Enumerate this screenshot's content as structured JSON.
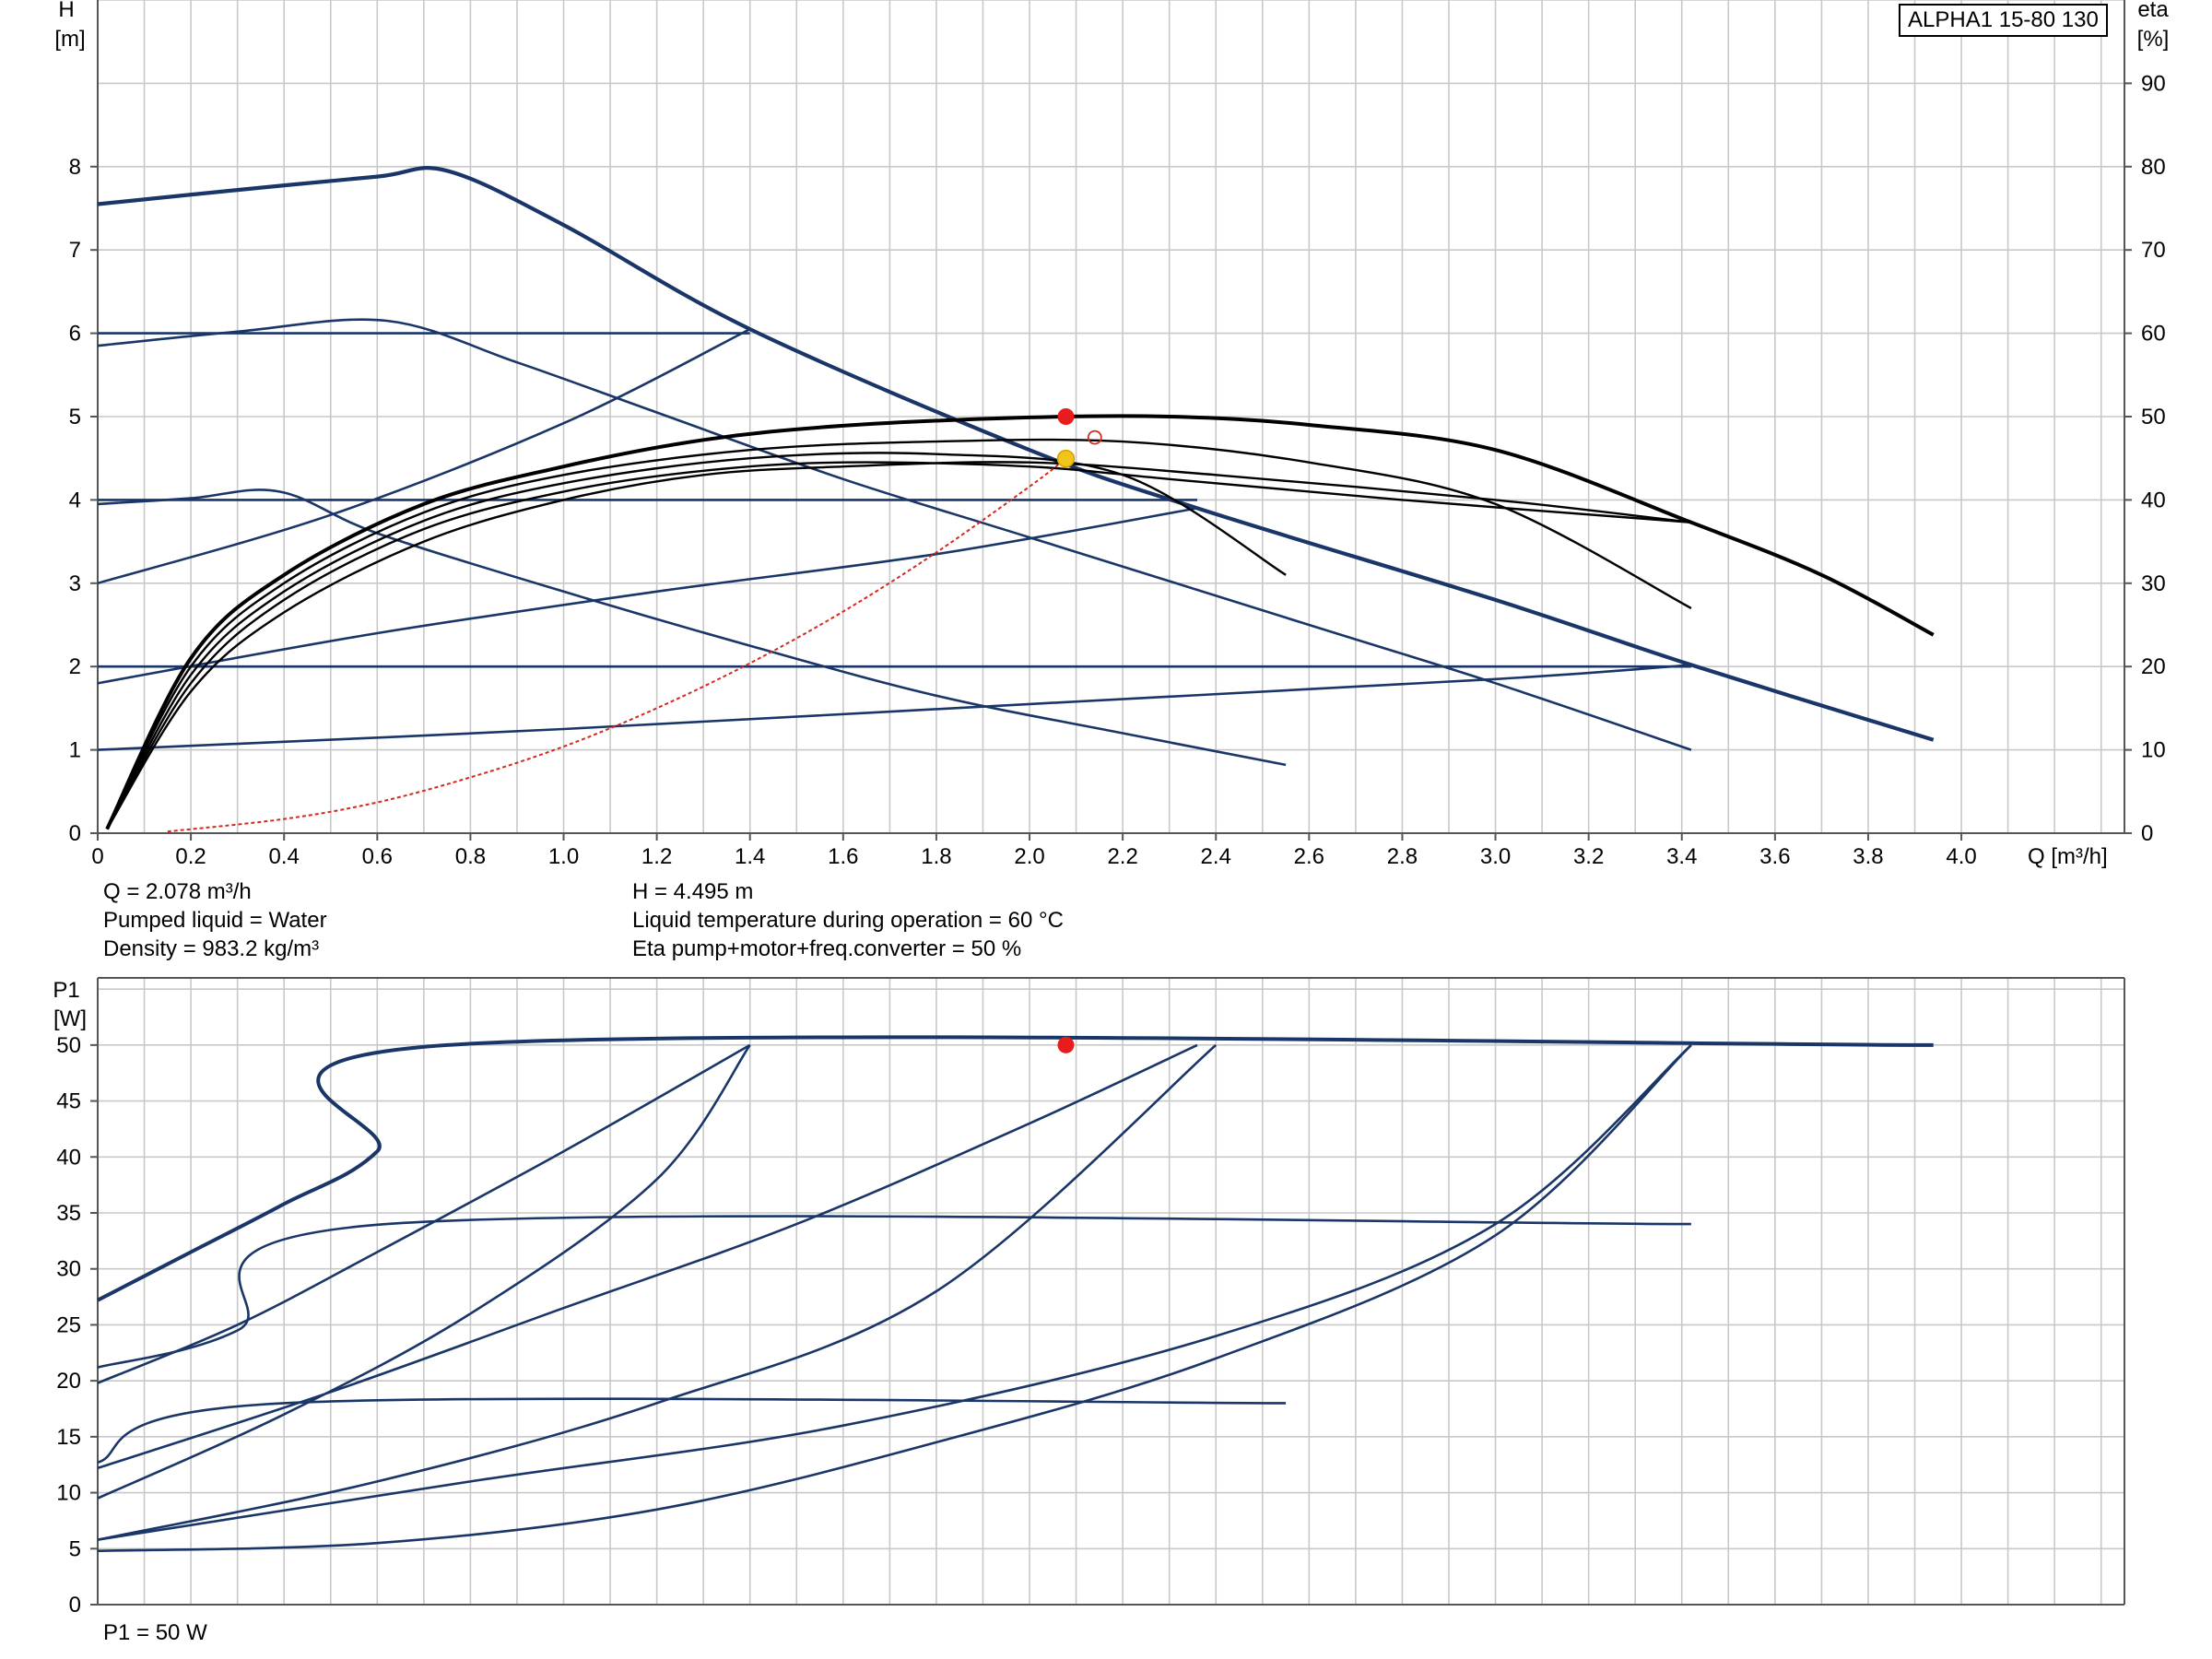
{
  "model_label": "ALPHA1 15-80 130",
  "colors": {
    "pump_curve": "#1a3668",
    "efficiency_curve": "#000000",
    "system_curve": "#d42a1e",
    "duty_point": "#e81c1c",
    "efficiency_point": "#f0c419",
    "grid": "#c8c8c8"
  },
  "info": {
    "q": "Q = 2.078 m³/h",
    "h": "H = 4.495 m",
    "liquid": "Pumped liquid = Water",
    "temperature": "Liquid temperature during operation = 60 °C",
    "density": "Density = 983.2 kg/m³",
    "eta": "Eta pump+motor+freq.converter = 50 %",
    "p1": "P1 = 50 W"
  },
  "chart_data": [
    {
      "type": "line",
      "x_label": "Q [m³/h]",
      "y_label_line1": "H",
      "y_label_line2": "[m]",
      "y2_label_line1": "eta",
      "y2_label_line2": "[%]",
      "xlim": [
        0,
        4.35
      ],
      "ylim": [
        0,
        10
      ],
      "y2lim": [
        0,
        100
      ],
      "x_ticks": [
        "0",
        "0.2",
        "0.4",
        "0.6",
        "0.8",
        "1.0",
        "1.2",
        "1.4",
        "1.6",
        "1.8",
        "2.0",
        "2.2",
        "2.4",
        "2.6",
        "2.8",
        "3.0",
        "3.2",
        "3.4",
        "3.6",
        "3.8",
        "4.0"
      ],
      "y_ticks": [
        "0",
        "1",
        "2",
        "3",
        "4",
        "5",
        "6",
        "7",
        "8"
      ],
      "y2_ticks": [
        "0",
        "10",
        "20",
        "30",
        "40",
        "50",
        "60",
        "70",
        "80",
        "90"
      ],
      "grid": true,
      "head_curves": [
        [
          [
            0,
            7.55
          ],
          [
            0.3,
            7.72
          ],
          [
            0.6,
            7.88
          ],
          [
            0.75,
            7.95
          ],
          [
            1.0,
            7.3
          ],
          [
            1.4,
            6.05
          ],
          [
            2.0,
            4.6
          ],
          [
            2.36,
            3.9
          ],
          [
            3.0,
            2.8
          ],
          [
            3.42,
            2.02
          ],
          [
            3.94,
            1.12
          ]
        ],
        [
          [
            0,
            5.85
          ],
          [
            0.3,
            6.02
          ],
          [
            0.62,
            6.15
          ],
          [
            0.9,
            5.65
          ],
          [
            1.2,
            5.05
          ],
          [
            1.6,
            4.25
          ],
          [
            2.0,
            3.55
          ],
          [
            2.6,
            2.5
          ],
          [
            3.0,
            1.8
          ],
          [
            3.42,
            1.0
          ]
        ],
        [
          [
            0,
            3.95
          ],
          [
            0.2,
            4.02
          ],
          [
            0.39,
            4.1
          ],
          [
            0.6,
            3.6
          ],
          [
            1.0,
            2.9
          ],
          [
            1.4,
            2.25
          ],
          [
            1.8,
            1.65
          ],
          [
            2.2,
            1.2
          ],
          [
            2.55,
            0.82
          ]
        ],
        [
          [
            0,
            6.0
          ],
          [
            1.4,
            6.0
          ]
        ],
        [
          [
            0,
            3.0
          ],
          [
            0.5,
            3.82
          ],
          [
            1.0,
            4.92
          ],
          [
            1.4,
            6.05
          ]
        ],
        [
          [
            0,
            4.0
          ],
          [
            2.36,
            4.0
          ]
        ],
        [
          [
            0,
            1.8
          ],
          [
            0.6,
            2.4
          ],
          [
            1.2,
            2.9
          ],
          [
            1.8,
            3.35
          ],
          [
            2.36,
            3.9
          ]
        ],
        [
          [
            0,
            2.0
          ],
          [
            3.42,
            2.0
          ]
        ],
        [
          [
            0,
            1.0
          ],
          [
            1.0,
            1.25
          ],
          [
            2.0,
            1.55
          ],
          [
            3.0,
            1.85
          ],
          [
            3.42,
            2.02
          ]
        ]
      ],
      "efficiency_curves": [
        [
          [
            0.02,
            0.5
          ],
          [
            0.2,
            21
          ],
          [
            0.4,
            31
          ],
          [
            0.7,
            39.5
          ],
          [
            1.0,
            44
          ],
          [
            1.3,
            47.2
          ],
          [
            1.6,
            48.9
          ],
          [
            2.0,
            49.9
          ],
          [
            2.3,
            50
          ],
          [
            2.6,
            49
          ],
          [
            3.0,
            46
          ],
          [
            3.42,
            37.3
          ],
          [
            3.7,
            31
          ],
          [
            3.94,
            23.8
          ]
        ],
        [
          [
            0.02,
            0.5
          ],
          [
            0.2,
            20
          ],
          [
            0.4,
            30
          ],
          [
            0.7,
            38.5
          ],
          [
            1.0,
            43
          ],
          [
            1.4,
            46
          ],
          [
            1.8,
            47
          ],
          [
            2.2,
            47
          ],
          [
            2.6,
            44.5
          ],
          [
            3.0,
            39.5
          ],
          [
            3.42,
            27
          ]
        ],
        [
          [
            0.02,
            0.5
          ],
          [
            0.2,
            19
          ],
          [
            0.4,
            29
          ],
          [
            0.7,
            37.5
          ],
          [
            1.0,
            42
          ],
          [
            1.4,
            45
          ],
          [
            1.8,
            45.5
          ],
          [
            2.2,
            43
          ],
          [
            2.55,
            31
          ]
        ],
        [
          [
            0.02,
            0.5
          ],
          [
            0.2,
            18
          ],
          [
            0.4,
            28
          ],
          [
            0.7,
            36.5
          ],
          [
            1.0,
            41
          ],
          [
            1.3,
            43.5
          ],
          [
            1.6,
            44.5
          ],
          [
            2.0,
            44
          ],
          [
            2.3,
            42.5
          ],
          [
            2.8,
            40
          ],
          [
            3.42,
            37.3
          ]
        ],
        [
          [
            0.02,
            0.5
          ],
          [
            0.2,
            17
          ],
          [
            0.4,
            26.5
          ],
          [
            0.7,
            35
          ],
          [
            1.0,
            40
          ],
          [
            1.3,
            43
          ],
          [
            1.6,
            44
          ],
          [
            2.0,
            44.5
          ],
          [
            2.4,
            43
          ],
          [
            3.0,
            40
          ],
          [
            3.42,
            37.3
          ]
        ]
      ],
      "system_curve": [
        [
          0.15,
          0.02
        ],
        [
          0.4,
          0.17
        ],
        [
          0.6,
          0.37
        ],
        [
          0.8,
          0.67
        ],
        [
          1.0,
          1.04
        ],
        [
          1.2,
          1.5
        ],
        [
          1.4,
          2.04
        ],
        [
          1.6,
          2.66
        ],
        [
          1.8,
          3.37
        ],
        [
          2.0,
          4.16
        ],
        [
          2.078,
          4.495
        ]
      ],
      "duty_point": {
        "q": 2.078,
        "h": 4.495
      },
      "efficiency_point": {
        "q": 2.078,
        "eta": 50
      },
      "marker_o": {
        "q": 2.14,
        "h": 4.75
      }
    },
    {
      "type": "line",
      "x_label": "",
      "y_label_line1": "P1",
      "y_label_line2": "[W]",
      "xlim": [
        0,
        4.35
      ],
      "ylim": [
        0,
        56
      ],
      "y_ticks": [
        "0",
        "5",
        "10",
        "15",
        "20",
        "25",
        "30",
        "35",
        "40",
        "45",
        "50"
      ],
      "grid": true,
      "power_curves": [
        [
          [
            0,
            27.2
          ],
          [
            0.2,
            31.5
          ],
          [
            0.4,
            35.8
          ],
          [
            0.6,
            40.5
          ],
          [
            0.75,
            50
          ],
          [
            3.94,
            50
          ]
        ],
        [
          [
            0,
            19.8
          ],
          [
            0.3,
            25
          ],
          [
            0.6,
            31.5
          ],
          [
            1.0,
            40.5
          ],
          [
            1.4,
            50
          ]
        ],
        [
          [
            0,
            21.2
          ],
          [
            0.3,
            24.5
          ],
          [
            0.62,
            34
          ],
          [
            3.42,
            34
          ]
        ],
        [
          [
            0,
            12.7
          ],
          [
            0.4,
            18
          ],
          [
            2.55,
            18
          ]
        ],
        [
          [
            0,
            9.5
          ],
          [
            0.4,
            17
          ],
          [
            0.8,
            26
          ],
          [
            1.2,
            38
          ],
          [
            1.4,
            50
          ]
        ],
        [
          [
            0,
            12.2
          ],
          [
            0.5,
            19
          ],
          [
            1.0,
            26.5
          ],
          [
            1.5,
            34
          ],
          [
            2.0,
            43
          ],
          [
            2.36,
            50
          ]
        ],
        [
          [
            0,
            5.8
          ],
          [
            0.6,
            11
          ],
          [
            1.2,
            18
          ],
          [
            1.8,
            28
          ],
          [
            2.4,
            50
          ]
        ],
        [
          [
            0,
            5.8
          ],
          [
            0.8,
            11
          ],
          [
            1.6,
            16
          ],
          [
            2.4,
            24
          ],
          [
            3.0,
            34
          ],
          [
            3.42,
            50
          ]
        ],
        [
          [
            0,
            4.8
          ],
          [
            0.6,
            5.5
          ],
          [
            1.2,
            8.5
          ],
          [
            1.8,
            14.5
          ],
          [
            2.4,
            22
          ],
          [
            3.0,
            33
          ],
          [
            3.42,
            50
          ]
        ]
      ],
      "duty_point": {
        "q": 2.078,
        "p1": 50
      }
    }
  ]
}
